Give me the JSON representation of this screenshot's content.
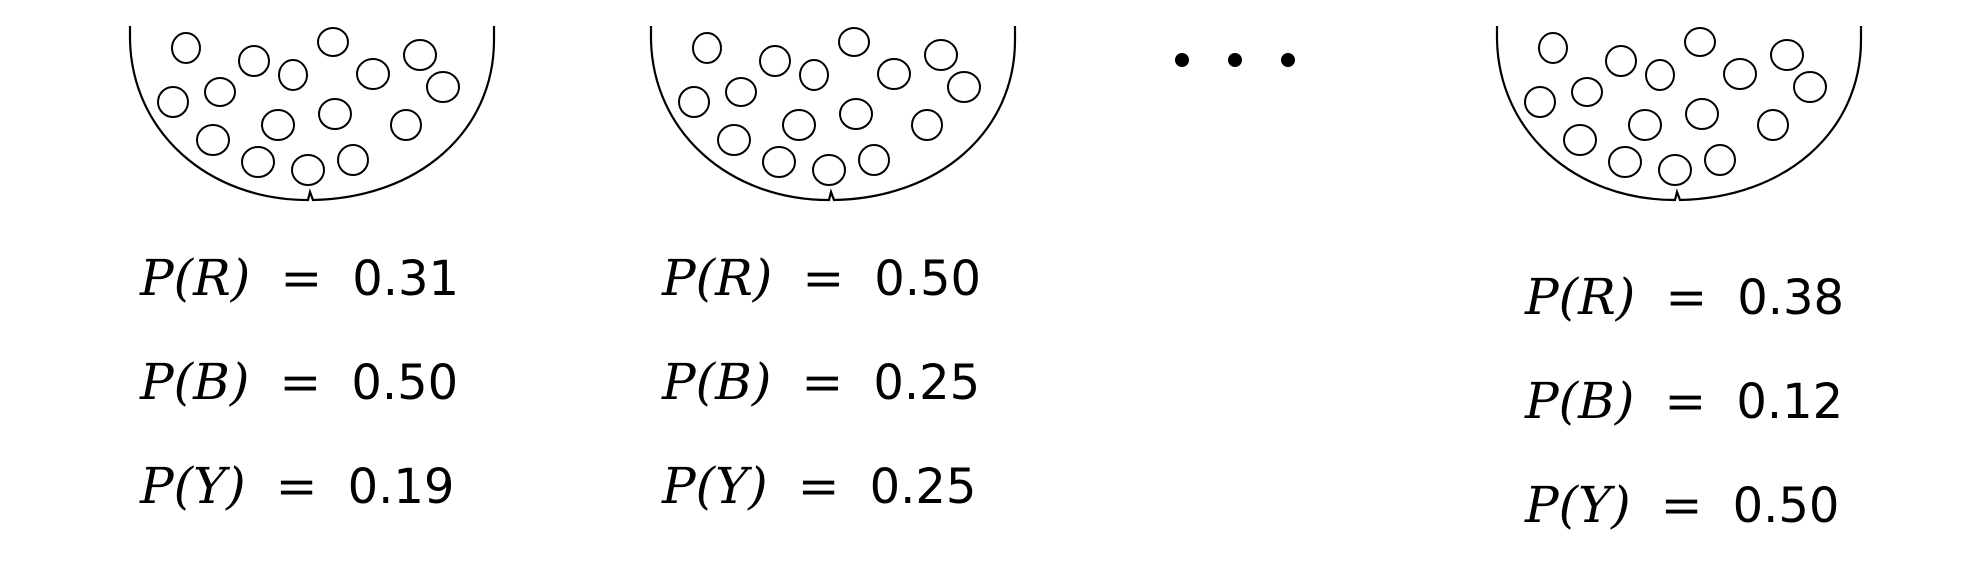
{
  "figure": {
    "ellipsis_label": "three dots indicating more urns",
    "urns": [
      {
        "probabilities": [
          {
            "label": "P(R)",
            "equals": "=",
            "value": "0.31"
          },
          {
            "label": "P(B)",
            "equals": "=",
            "value": "0.50"
          },
          {
            "label": "P(Y)",
            "equals": "=",
            "value": "0.19"
          }
        ]
      },
      {
        "probabilities": [
          {
            "label": "P(R)",
            "equals": "=",
            "value": "0.50"
          },
          {
            "label": "P(B)",
            "equals": "=",
            "value": "0.25"
          },
          {
            "label": "P(Y)",
            "equals": "=",
            "value": "0.25"
          }
        ]
      },
      {
        "probabilities": [
          {
            "label": "P(R)",
            "equals": "=",
            "value": "0.38"
          },
          {
            "label": "P(B)",
            "equals": "=",
            "value": "0.12"
          },
          {
            "label": "P(Y)",
            "equals": "=",
            "value": "0.50"
          }
        ]
      }
    ]
  }
}
